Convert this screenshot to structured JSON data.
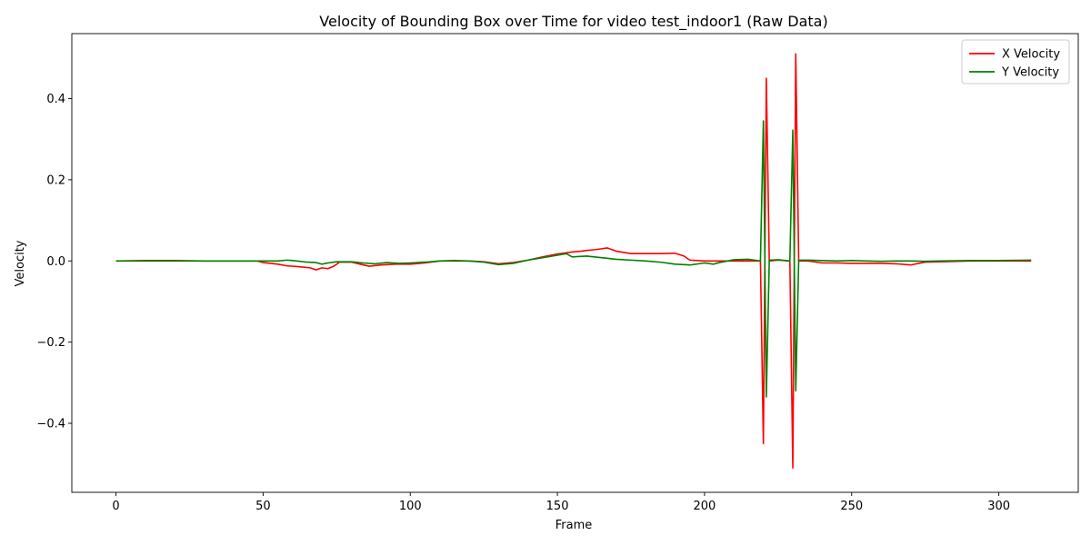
{
  "chart_data": {
    "type": "line",
    "title": "Velocity of Bounding Box over Time for video test_indoor1 (Raw Data)",
    "xlabel": "Frame",
    "ylabel": "Velocity",
    "xlim": [
      -15,
      327
    ],
    "ylim": [
      -0.57,
      0.56
    ],
    "xticks": [
      0,
      50,
      100,
      150,
      200,
      250,
      300
    ],
    "yticks": [
      -0.4,
      -0.2,
      0.0,
      0.2,
      0.4
    ],
    "ytick_labels": [
      "−0.4",
      "−0.2",
      "0.0",
      "0.2",
      "0.4"
    ],
    "grid": false,
    "legend": "top-right",
    "series": [
      {
        "name": "X Velocity",
        "color": "#ff0000",
        "points": [
          [
            0,
            0.0
          ],
          [
            10,
            0.001
          ],
          [
            20,
            0.001
          ],
          [
            30,
            0.0
          ],
          [
            40,
            0.0
          ],
          [
            48,
            0.0
          ],
          [
            50,
            -0.004
          ],
          [
            55,
            -0.008
          ],
          [
            58,
            -0.012
          ],
          [
            62,
            -0.014
          ],
          [
            66,
            -0.017
          ],
          [
            68,
            -0.022
          ],
          [
            70,
            -0.017
          ],
          [
            72,
            -0.019
          ],
          [
            74,
            -0.013
          ],
          [
            76,
            -0.003
          ],
          [
            80,
            -0.003
          ],
          [
            83,
            -0.008
          ],
          [
            86,
            -0.013
          ],
          [
            90,
            -0.01
          ],
          [
            95,
            -0.008
          ],
          [
            100,
            -0.008
          ],
          [
            105,
            -0.005
          ],
          [
            110,
            0.0
          ],
          [
            115,
            0.001
          ],
          [
            120,
            0.0
          ],
          [
            125,
            -0.002
          ],
          [
            130,
            -0.007
          ],
          [
            135,
            -0.004
          ],
          [
            140,
            0.002
          ],
          [
            145,
            0.01
          ],
          [
            150,
            0.017
          ],
          [
            155,
            0.022
          ],
          [
            158,
            0.024
          ],
          [
            160,
            0.026
          ],
          [
            163,
            0.028
          ],
          [
            165,
            0.03
          ],
          [
            167,
            0.032
          ],
          [
            170,
            0.024
          ],
          [
            175,
            0.018
          ],
          [
            180,
            0.018
          ],
          [
            185,
            0.018
          ],
          [
            190,
            0.019
          ],
          [
            193,
            0.012
          ],
          [
            195,
            0.002
          ],
          [
            200,
            0.0
          ],
          [
            210,
            0.0
          ],
          [
            215,
            0.0
          ],
          [
            219,
            0.0
          ],
          [
            220,
            -0.45
          ],
          [
            221,
            0.45
          ],
          [
            222,
            0.0
          ],
          [
            225,
            0.002
          ],
          [
            229,
            0.0
          ],
          [
            230,
            -0.51
          ],
          [
            231,
            0.51
          ],
          [
            232,
            0.0
          ],
          [
            235,
            0.0
          ],
          [
            240,
            -0.005
          ],
          [
            245,
            -0.005
          ],
          [
            250,
            -0.006
          ],
          [
            255,
            -0.006
          ],
          [
            260,
            -0.006
          ],
          [
            265,
            -0.007
          ],
          [
            270,
            -0.01
          ],
          [
            275,
            -0.003
          ],
          [
            280,
            -0.002
          ],
          [
            290,
            0.0
          ],
          [
            300,
            0.0
          ],
          [
            311,
            0.0
          ]
        ]
      },
      {
        "name": "Y Velocity",
        "color": "#008000",
        "points": [
          [
            0,
            0.0
          ],
          [
            10,
            0.0
          ],
          [
            20,
            0.0
          ],
          [
            30,
            0.0
          ],
          [
            40,
            0.0
          ],
          [
            50,
            0.0
          ],
          [
            55,
            0.0
          ],
          [
            58,
            0.002
          ],
          [
            60,
            0.001
          ],
          [
            65,
            -0.003
          ],
          [
            68,
            -0.004
          ],
          [
            70,
            -0.008
          ],
          [
            72,
            -0.005
          ],
          [
            75,
            -0.002
          ],
          [
            80,
            -0.002
          ],
          [
            84,
            -0.005
          ],
          [
            88,
            -0.007
          ],
          [
            92,
            -0.004
          ],
          [
            96,
            -0.006
          ],
          [
            100,
            -0.005
          ],
          [
            105,
            -0.003
          ],
          [
            110,
            0.0
          ],
          [
            115,
            0.0
          ],
          [
            120,
            0.0
          ],
          [
            125,
            -0.003
          ],
          [
            130,
            -0.009
          ],
          [
            135,
            -0.006
          ],
          [
            140,
            0.002
          ],
          [
            145,
            0.008
          ],
          [
            150,
            0.014
          ],
          [
            153,
            0.018
          ],
          [
            155,
            0.01
          ],
          [
            160,
            0.012
          ],
          [
            165,
            0.008
          ],
          [
            170,
            0.004
          ],
          [
            175,
            0.002
          ],
          [
            180,
            0.0
          ],
          [
            185,
            -0.003
          ],
          [
            190,
            -0.008
          ],
          [
            195,
            -0.01
          ],
          [
            200,
            -0.005
          ],
          [
            203,
            -0.008
          ],
          [
            205,
            -0.004
          ],
          [
            210,
            0.003
          ],
          [
            215,
            0.004
          ],
          [
            219,
            0.0
          ],
          [
            220,
            0.345
          ],
          [
            221,
            -0.335
          ],
          [
            222,
            0.002
          ],
          [
            225,
            0.003
          ],
          [
            229,
            0.0
          ],
          [
            230,
            0.322
          ],
          [
            231,
            -0.32
          ],
          [
            232,
            0.002
          ],
          [
            235,
            0.002
          ],
          [
            240,
            0.001
          ],
          [
            245,
            0.0
          ],
          [
            250,
            0.001
          ],
          [
            255,
            0.0
          ],
          [
            260,
            -0.001
          ],
          [
            265,
            0.0
          ],
          [
            270,
            0.0
          ],
          [
            275,
            -0.001
          ],
          [
            280,
            0.0
          ],
          [
            290,
            0.001
          ],
          [
            300,
            0.001
          ],
          [
            311,
            0.002
          ]
        ]
      }
    ]
  }
}
